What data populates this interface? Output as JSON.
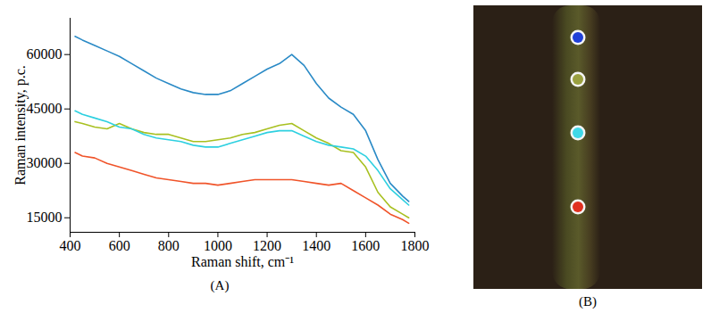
{
  "chart_data": [
    {
      "type": "line",
      "panel_label": "(A)",
      "x_label": "Raman shift, cm⁻¹",
      "y_label": "Raman intensity, p.c.",
      "x": [
        420,
        450,
        500,
        550,
        600,
        650,
        700,
        750,
        800,
        850,
        900,
        950,
        1000,
        1050,
        1100,
        1150,
        1200,
        1250,
        1300,
        1350,
        1400,
        1450,
        1500,
        1550,
        1600,
        1650,
        1700,
        1750,
        1775
      ],
      "series": [
        {
          "color": "#2a8ac6",
          "values": [
            65000,
            64000,
            62500,
            61000,
            59500,
            57500,
            55500,
            53500,
            52000,
            50500,
            49500,
            49000,
            49000,
            50000,
            52000,
            54000,
            56000,
            57500,
            60000,
            57000,
            52000,
            48000,
            45500,
            43500,
            39000,
            31000,
            24500,
            21000,
            19500
          ]
        },
        {
          "color": "#a8c020",
          "values": [
            41500,
            41000,
            40000,
            39500,
            41000,
            39500,
            38500,
            38000,
            38000,
            37000,
            36000,
            36000,
            36500,
            37000,
            38000,
            38500,
            39500,
            40500,
            41000,
            39000,
            37000,
            35500,
            33500,
            33000,
            29000,
            22000,
            18000,
            16000,
            15000
          ]
        },
        {
          "color": "#2ed0e0",
          "values": [
            44500,
            43500,
            42500,
            41500,
            40000,
            39500,
            38000,
            37000,
            36500,
            36000,
            35000,
            34500,
            34500,
            35500,
            36500,
            37500,
            38500,
            39000,
            39000,
            37500,
            36000,
            35000,
            34500,
            34000,
            32000,
            28000,
            23000,
            20000,
            18500
          ]
        },
        {
          "color": "#f0542a",
          "values": [
            33000,
            32000,
            31500,
            30000,
            29000,
            28000,
            27000,
            26000,
            25500,
            25000,
            24500,
            24500,
            24000,
            24500,
            25000,
            25500,
            25500,
            25500,
            25500,
            25000,
            24500,
            24000,
            24500,
            22500,
            20500,
            18500,
            16000,
            14500,
            13500
          ]
        }
      ],
      "xlim": [
        400,
        1800
      ],
      "ylim": [
        11000,
        70000
      ],
      "xticks": [
        400,
        600,
        800,
        1000,
        1200,
        1400,
        1600,
        1800
      ],
      "yticks": [
        15000,
        30000,
        45000,
        60000
      ],
      "grid": false
    },
    {
      "type": "image",
      "panel_label": "(B)",
      "colors": [
        "#2040d8",
        "#9aa040",
        "#40d8e8",
        "#e03020"
      ]
    }
  ]
}
